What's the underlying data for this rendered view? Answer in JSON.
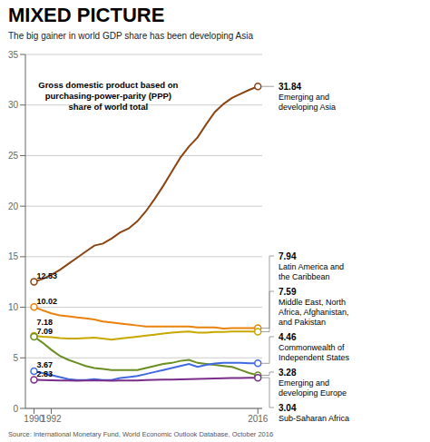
{
  "chart_data": {
    "type": "line",
    "title": "MIXED PICTURE",
    "subtitle": "The big gainer in world GDP share has been developing Asia",
    "annotation": "Gross domestic product based on\npurchasing-power-parity (PPP)\nshare of world total",
    "source": "Source: International Monetary Fund, World Economic Outlook Database, October 2016",
    "x": [
      1990,
      1991,
      1992,
      1993,
      1994,
      1995,
      1996,
      1997,
      1998,
      1999,
      2000,
      2001,
      2002,
      2003,
      2004,
      2005,
      2006,
      2007,
      2008,
      2009,
      2010,
      2011,
      2012,
      2013,
      2014,
      2015,
      2016
    ],
    "xlim": [
      1989.0,
      2016.5
    ],
    "xticks": [
      1990,
      1992,
      2016
    ],
    "ylim": [
      0,
      35
    ],
    "yticks": [
      0,
      5,
      10,
      15,
      20,
      25,
      30,
      35
    ],
    "grid": true,
    "series": [
      {
        "name": "Emerging and developing Asia",
        "color": "#8B4513",
        "values": [
          12.53,
          12.8,
          13.2,
          13.7,
          14.3,
          14.9,
          15.5,
          16.1,
          16.3,
          16.8,
          17.4,
          17.8,
          18.5,
          19.5,
          20.7,
          22.0,
          23.4,
          24.8,
          25.9,
          26.8,
          28.1,
          29.3,
          30.1,
          30.7,
          31.1,
          31.5,
          31.84
        ]
      },
      {
        "name": "Latin America and the Caribbean",
        "color": "#E8820A",
        "values": [
          10.02,
          9.7,
          9.4,
          9.2,
          9.1,
          9.0,
          8.9,
          8.8,
          8.6,
          8.5,
          8.4,
          8.3,
          8.2,
          8.1,
          8.1,
          8.1,
          8.1,
          8.1,
          8.1,
          8.0,
          8.0,
          8.0,
          7.9,
          7.95,
          7.95,
          7.95,
          7.94
        ]
      },
      {
        "name": "Middle East, North Africa, Afghanistan, and Pakistan",
        "color": "#C8A800",
        "values": [
          7.18,
          7.1,
          7.05,
          6.95,
          6.9,
          6.9,
          6.95,
          7.0,
          6.9,
          6.8,
          6.9,
          7.0,
          7.1,
          7.2,
          7.3,
          7.4,
          7.5,
          7.55,
          7.6,
          7.5,
          7.5,
          7.55,
          7.55,
          7.6,
          7.6,
          7.6,
          7.59
        ]
      },
      {
        "name": "Emerging and developing Europe",
        "color": "#6B8E23",
        "values": [
          7.09,
          6.5,
          5.8,
          5.2,
          4.8,
          4.5,
          4.2,
          4.0,
          3.9,
          3.8,
          3.8,
          3.8,
          3.8,
          4.0,
          4.2,
          4.4,
          4.5,
          4.7,
          4.8,
          4.5,
          4.4,
          4.3,
          4.2,
          4.1,
          3.8,
          3.5,
          3.28
        ]
      },
      {
        "name": "Commonwealth of Independent States",
        "color": "#4169E1",
        "values": [
          3.67,
          3.5,
          3.3,
          3.1,
          2.9,
          2.8,
          2.8,
          2.9,
          2.8,
          2.8,
          3.0,
          3.1,
          3.2,
          3.4,
          3.6,
          3.8,
          4.0,
          4.2,
          4.4,
          4.1,
          4.3,
          4.45,
          4.5,
          4.5,
          4.5,
          4.47,
          4.46
        ]
      },
      {
        "name": "Sub-Saharan Africa",
        "color": "#7B2D8B",
        "values": [
          2.83,
          2.8,
          2.78,
          2.76,
          2.75,
          2.74,
          2.75,
          2.76,
          2.75,
          2.74,
          2.75,
          2.76,
          2.77,
          2.8,
          2.82,
          2.84,
          2.86,
          2.88,
          2.9,
          2.92,
          2.95,
          2.97,
          2.99,
          3.0,
          3.01,
          3.02,
          3.04
        ]
      }
    ]
  }
}
